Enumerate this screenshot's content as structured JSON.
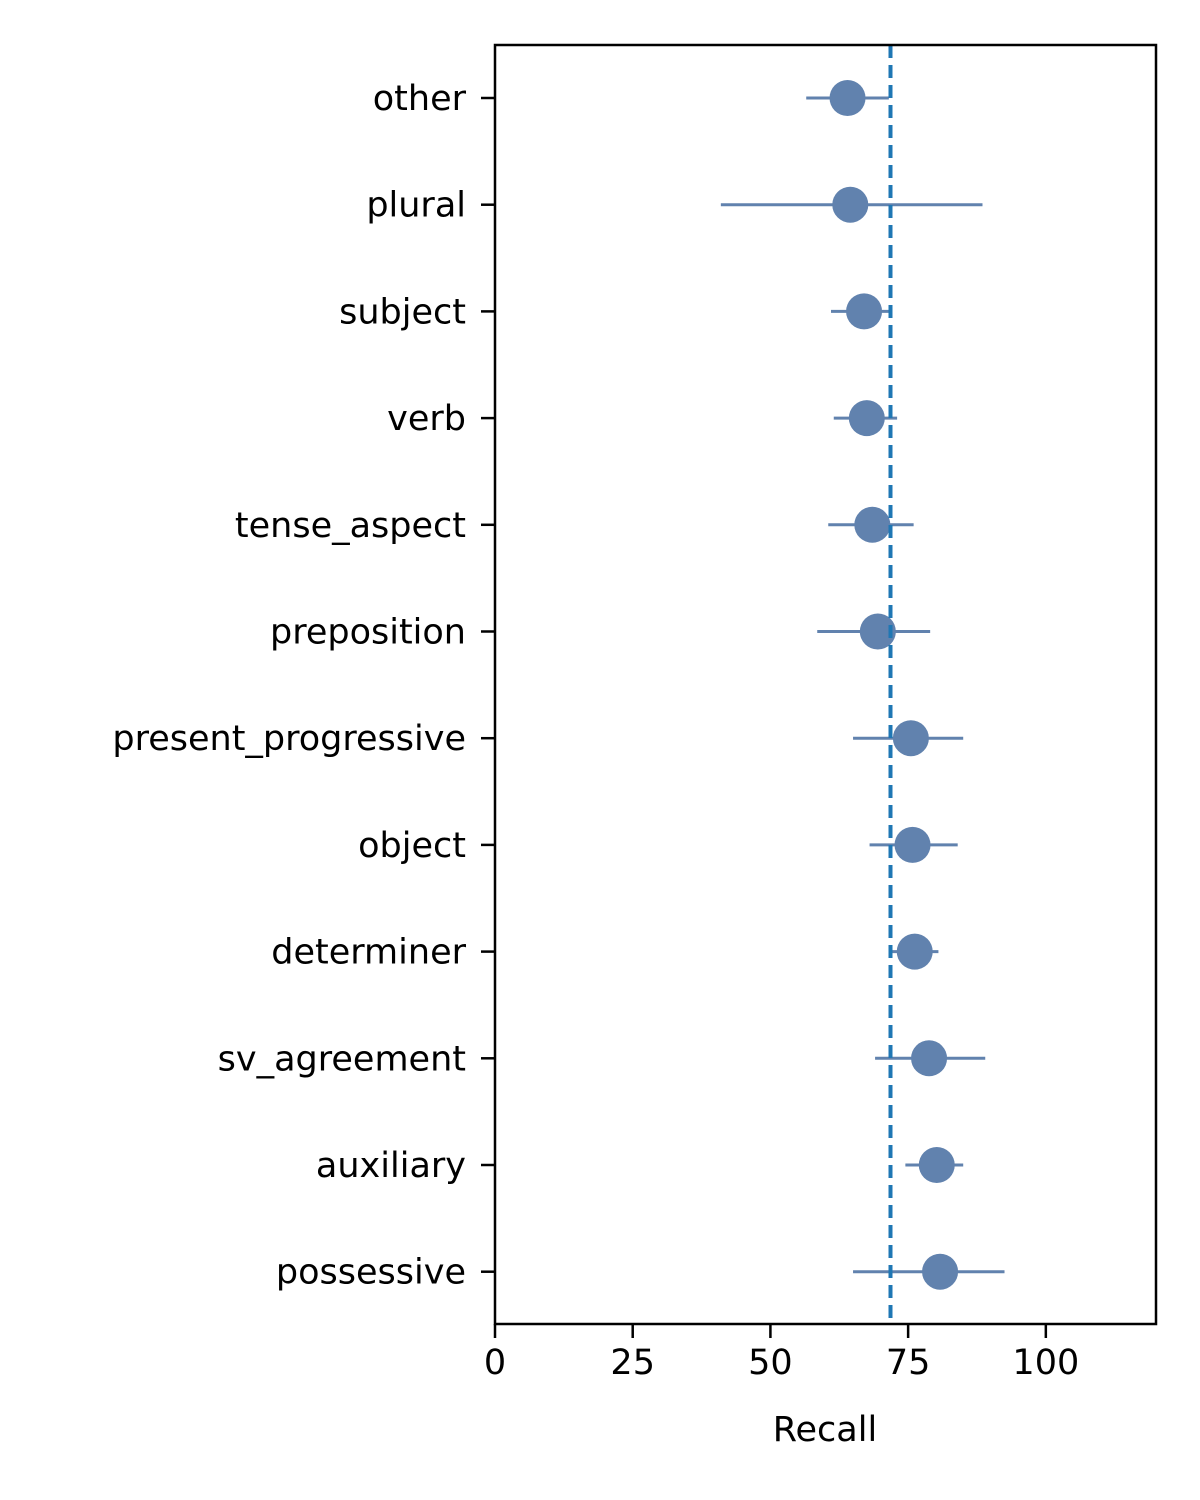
{
  "chart_data": {
    "type": "scatter",
    "subtype": "dot-plot-with-horizontal-error-bars",
    "xlabel": "Recall",
    "ylabel": "",
    "xlim": [
      0,
      120
    ],
    "xticks": [
      0,
      25,
      50,
      75,
      100
    ],
    "grid": false,
    "categories": [
      "other",
      "plural",
      "subject",
      "verb",
      "tense_aspect",
      "preposition",
      "present_progressive",
      "object",
      "determiner",
      "sv_agreement",
      "auxiliary",
      "possessive"
    ],
    "values": [
      64.0,
      64.5,
      67.0,
      67.5,
      68.5,
      69.5,
      75.5,
      75.8,
      76.2,
      78.8,
      80.2,
      80.8
    ],
    "error_low": [
      56.5,
      41.0,
      61.0,
      61.5,
      60.5,
      58.5,
      65.0,
      68.0,
      72.0,
      69.0,
      74.5,
      65.0
    ],
    "error_high": [
      71.5,
      88.5,
      72.0,
      73.0,
      76.0,
      79.0,
      85.0,
      84.0,
      80.5,
      89.0,
      85.0,
      92.5
    ],
    "reference_line": {
      "x": 71.8,
      "style": "dashed"
    },
    "colors": {
      "points": "#6182AE",
      "reference": "#1F77B4",
      "axes": "#000000"
    }
  }
}
